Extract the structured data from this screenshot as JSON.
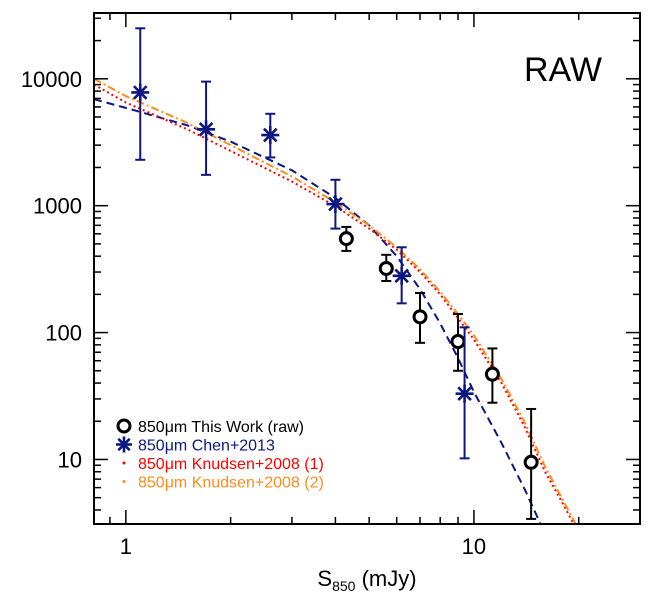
{
  "chart_data": {
    "type": "scatter",
    "annotation": "RAW",
    "xlabel": {
      "main": "S",
      "sub": "850",
      "unit": " (mJy)"
    },
    "ylabel": "",
    "xscale": "log",
    "yscale": "log",
    "xlim": [
      0.81,
      30
    ],
    "ylim": [
      3.1,
      33000
    ],
    "x_ticks": [
      {
        "value": 1,
        "label": "1"
      },
      {
        "value": 10,
        "label": "10"
      }
    ],
    "y_ticks": [
      {
        "value": 10,
        "label": "10"
      },
      {
        "value": 100,
        "label": "100"
      },
      {
        "value": 1000,
        "label": "1000"
      },
      {
        "value": 10000,
        "label": "10000"
      }
    ],
    "legend_position": "bottom-left",
    "legend": [
      {
        "label": "850μm This Work (raw)",
        "color": "#000000",
        "marker": "circle"
      },
      {
        "label": "850μm Chen+2013",
        "color": "#0c1780",
        "marker": "asterisk"
      },
      {
        "label": "850μm Knudsen+2008 (1)",
        "color": "#ff0000",
        "marker": "dot"
      },
      {
        "label": "850μm Knudsen+2008 (2)",
        "color": "#ff8c1a",
        "marker": "dot"
      }
    ],
    "series": [
      {
        "name": "850μm This Work (raw)",
        "marker": "circle",
        "color": "#000000",
        "points": [
          {
            "x": 4.3,
            "y": 550,
            "ylo": 440,
            "yhi": 680
          },
          {
            "x": 5.6,
            "y": 320,
            "ylo": 255,
            "yhi": 410
          },
          {
            "x": 7.0,
            "y": 133,
            "ylo": 83,
            "yhi": 205
          },
          {
            "x": 9.0,
            "y": 85,
            "ylo": 50,
            "yhi": 140
          },
          {
            "x": 11.3,
            "y": 47,
            "ylo": 28,
            "yhi": 75
          },
          {
            "x": 14.6,
            "y": 9.5,
            "ylo": 3.4,
            "yhi": 25
          }
        ]
      },
      {
        "name": "850μm Chen+2013",
        "marker": "asterisk",
        "color": "#0c1780",
        "points": [
          {
            "x": 1.1,
            "y": 7800,
            "ylo": 2300,
            "yhi": 25000
          },
          {
            "x": 1.7,
            "y": 4000,
            "ylo": 1750,
            "yhi": 9500
          },
          {
            "x": 2.6,
            "y": 3600,
            "ylo": 2400,
            "yhi": 5300
          },
          {
            "x": 4.0,
            "y": 1030,
            "ylo": 660,
            "yhi": 1600
          },
          {
            "x": 6.2,
            "y": 280,
            "ylo": 170,
            "yhi": 470
          },
          {
            "x": 9.4,
            "y": 33,
            "ylo": 10.2,
            "yhi": 110
          }
        ]
      }
    ],
    "fits": [
      {
        "name": "Chen+2013 fit",
        "color": "#0c1780",
        "style": "dashed",
        "points": [
          [
            0.81,
            6900
          ],
          [
            1.0,
            5900
          ],
          [
            1.5,
            4300
          ],
          [
            2.0,
            3200
          ],
          [
            3.0,
            1900
          ],
          [
            4.0,
            1150
          ],
          [
            5.0,
            700
          ],
          [
            6.0,
            400
          ],
          [
            7.0,
            220
          ],
          [
            8.0,
            118
          ],
          [
            9.0,
            63
          ],
          [
            10.0,
            34
          ],
          [
            12.0,
            13.5
          ],
          [
            14.0,
            5.8
          ],
          [
            16.0,
            2.6
          ]
        ]
      },
      {
        "name": "Knudsen+2008 (1) fit",
        "color": "#ff0000",
        "style": "dotted",
        "points": [
          [
            0.81,
            9000
          ],
          [
            1.0,
            6500
          ],
          [
            1.5,
            4000
          ],
          [
            2.0,
            2700
          ],
          [
            3.0,
            1550
          ],
          [
            4.0,
            990
          ],
          [
            5.0,
            660
          ],
          [
            6.0,
            450
          ],
          [
            7.0,
            300
          ],
          [
            8.0,
            200
          ],
          [
            9.0,
            130
          ],
          [
            10.0,
            88
          ],
          [
            12.0,
            40
          ],
          [
            14.0,
            18
          ],
          [
            16.0,
            8
          ],
          [
            18.0,
            4.5
          ],
          [
            20.0,
            2.6
          ]
        ]
      },
      {
        "name": "Knudsen+2008 (2) fit",
        "color": "#ff8c1a",
        "style": "dash-dot",
        "points": [
          [
            0.81,
            10000
          ],
          [
            1.0,
            7300
          ],
          [
            1.5,
            4500
          ],
          [
            2.0,
            3000
          ],
          [
            3.0,
            1700
          ],
          [
            4.0,
            1060
          ],
          [
            5.0,
            700
          ],
          [
            6.0,
            470
          ],
          [
            7.0,
            315
          ],
          [
            8.0,
            210
          ],
          [
            9.0,
            140
          ],
          [
            10.0,
            95
          ],
          [
            12.0,
            43
          ],
          [
            14.0,
            19.5
          ],
          [
            16.0,
            8.8
          ],
          [
            18.0,
            4.8
          ],
          [
            20.0,
            2.8
          ]
        ]
      }
    ]
  }
}
